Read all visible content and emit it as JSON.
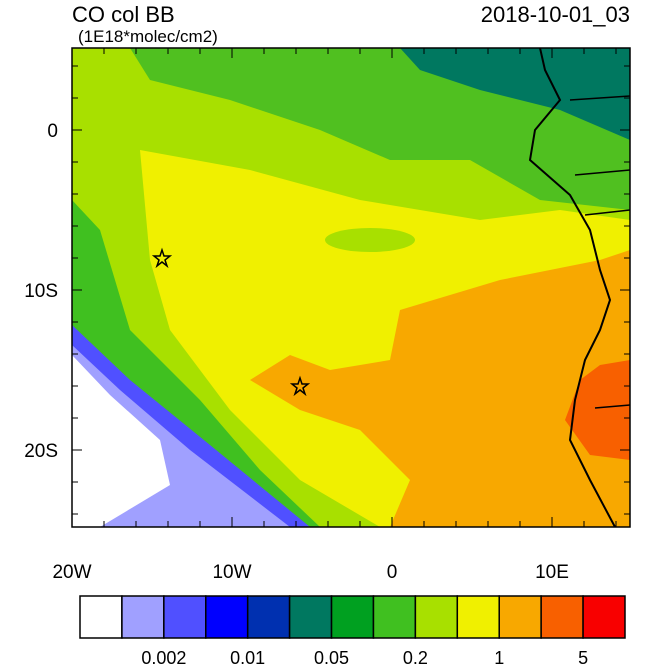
{
  "title": "CO col BB",
  "subtitle": "(1E18*molec/cm2)",
  "timestamp": "2018-10-01_03",
  "lat_labels": [
    "0",
    "10S",
    "20S"
  ],
  "lon_labels": [
    "20W",
    "10W",
    "0",
    "10E"
  ],
  "colorbar": {
    "colors": [
      "#ffffff",
      "#a0a0ff",
      "#5050ff",
      "#0000ff",
      "#0030b0",
      "#007860",
      "#00a020",
      "#40c020",
      "#a8e000",
      "#f0f000",
      "#f8a800",
      "#f86000",
      "#f80000"
    ],
    "labels": [
      "0.002",
      "0.01",
      "0.05",
      "0.2",
      "1",
      "5"
    ]
  }
}
